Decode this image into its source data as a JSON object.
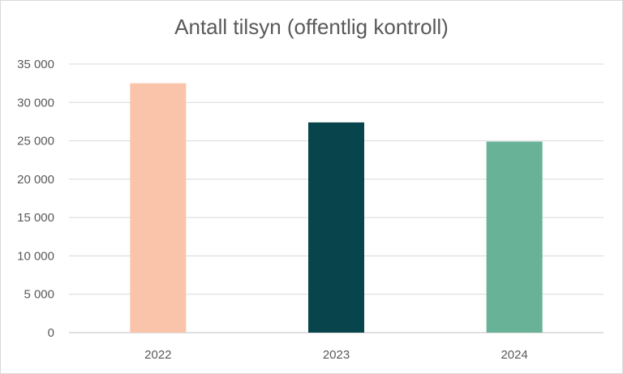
{
  "chart_data": {
    "type": "bar",
    "title": "Antall tilsyn (offentlig kontroll)",
    "categories": [
      "2022",
      "2023",
      "2024"
    ],
    "values": [
      32500,
      27400,
      24900
    ],
    "bar_colors": [
      "#f9c4aa",
      "#08444c",
      "#68b298"
    ],
    "ylim": [
      0,
      35000
    ],
    "yticks": [
      0,
      5000,
      10000,
      15000,
      20000,
      25000,
      30000,
      35000
    ],
    "ytick_labels": [
      "0",
      "5 000",
      "10 000",
      "15 000",
      "20 000",
      "25 000",
      "30 000",
      "35 000"
    ],
    "xlabel": "",
    "ylabel": "",
    "grid": true,
    "legend": "none"
  }
}
